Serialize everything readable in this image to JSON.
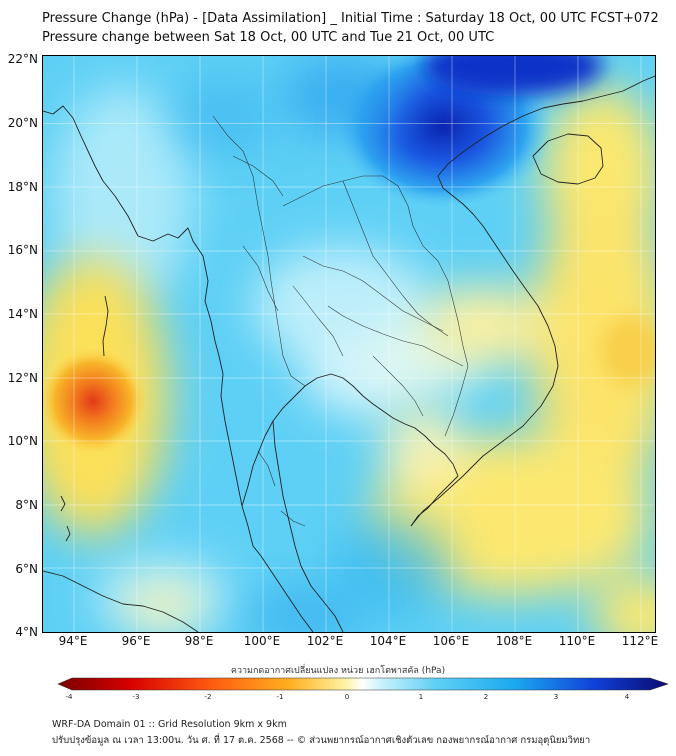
{
  "header": {
    "title_line1": "Pressure Change (hPa) - [Data Assimilation] _ Initial Time : Saturday 18 Oct, 00 UTC FCST+072",
    "title_line2": "Pressure change between Sat 18 Oct, 00 UTC and Tue 21 Oct, 00 UTC"
  },
  "map": {
    "lat_labels": [
      "22°N",
      "20°N",
      "18°N",
      "16°N",
      "14°N",
      "12°N",
      "10°N",
      "8°N",
      "6°N",
      "4°N"
    ],
    "lon_labels": [
      "94°E",
      "96°E",
      "98°E",
      "100°E",
      "102°E",
      "104°E",
      "106°E",
      "108°E",
      "110°E",
      "112°E"
    ],
    "lat_range": [
      4,
      22
    ],
    "lon_range": [
      93,
      112.5
    ],
    "field_colors": {
      "base": "#5fd0f5",
      "positive_strong": "#0a2fb8",
      "negative_mild": "#fbe05a",
      "negative_strong": "#e9471a"
    }
  },
  "colorbar": {
    "label": "ความกดอากาศเปลี่ยนแปลง หน่วย เฮกโตพาสคัล (hPa)",
    "ticks": [
      "-4",
      "-3",
      "-2",
      "-1",
      "0",
      "1",
      "2",
      "3",
      "4"
    ],
    "range": [
      -4,
      4
    ]
  },
  "footer": {
    "line1": "WRF-DA Domain 01 :: Grid Resolution 9km x 9km",
    "line2": "ปรับปรุงข้อมูล ณ เวลา 13:00น. วัน ศ. ที่ 17 ต.ค. 2568 -- © ส่วนพยากรณ์อากาศเชิงตัวเลข กองพยากรณ์อากาศ กรมอุตุนิยมวิทยา"
  }
}
